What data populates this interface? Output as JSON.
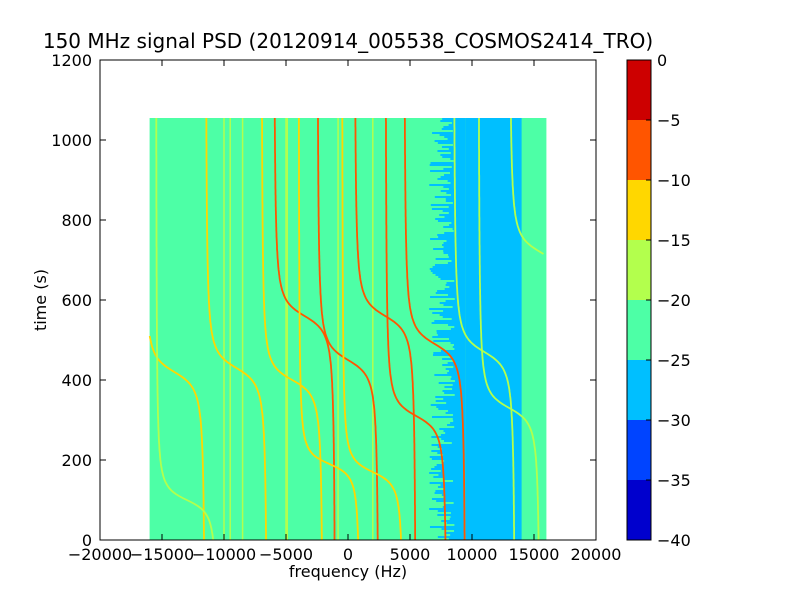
{
  "chart_data": {
    "type": "heatmap",
    "title": "150 MHz signal PSD (20120914_005538_COSMOS2414_TRO)",
    "xlabel": "frequency (Hz)",
    "ylabel": "time (s)",
    "xlim": [
      -20000,
      20000
    ],
    "ylim": [
      0,
      1200
    ],
    "xticks": [
      -20000,
      -15000,
      -10000,
      -5000,
      0,
      5000,
      10000,
      15000,
      20000
    ],
    "yticks": [
      0,
      200,
      400,
      600,
      800,
      1000,
      1200
    ],
    "data_extent": {
      "x": [
        -16000,
        16000
      ],
      "y": [
        0,
        1055
      ]
    },
    "background_level_db": -22,
    "low_noise_band": {
      "x_start": 9500,
      "x_end": 14000,
      "level_db": -27
    },
    "partial_low_noise_band": {
      "x_start": 6000,
      "x_end": 9500,
      "level_db": -27
    },
    "colorbar": {
      "min": -40,
      "max": 0,
      "ticks": [
        0,
        -5,
        -10,
        -15,
        -20,
        -25,
        -30,
        -35,
        -40
      ],
      "levels": [
        {
          "range": [
            -40,
            -35
          ],
          "color": "#0000cd"
        },
        {
          "range": [
            -35,
            -30
          ],
          "color": "#0044ff"
        },
        {
          "range": [
            -30,
            -25
          ],
          "color": "#00bfff"
        },
        {
          "range": [
            -25,
            -20
          ],
          "color": "#4dffa6"
        },
        {
          "range": [
            -20,
            -15
          ],
          "color": "#b3ff4d"
        },
        {
          "range": [
            -15,
            -10
          ],
          "color": "#ffd700"
        },
        {
          "range": [
            -10,
            -5
          ],
          "color": "#ff5500"
        },
        {
          "range": [
            -5,
            0
          ],
          "color": "#cd0000"
        }
      ]
    },
    "vertical_lines": [
      {
        "x": -10000,
        "level_db": -15
      },
      {
        "x": -9500,
        "level_db": -15
      },
      {
        "x": -8500,
        "level_db": -15
      },
      {
        "x": -5000,
        "level_db": -15
      },
      {
        "x": -4900,
        "level_db": -15
      },
      {
        "x": -800,
        "level_db": -18
      },
      {
        "x": 2000,
        "level_db": -18
      }
    ],
    "doppler_tracks": [
      {
        "x_mid": -9000,
        "t_mid": 430,
        "slope": 30,
        "curve": 2500,
        "t_start": 0,
        "t_end": 1055,
        "level_db": -14
      },
      {
        "x_mid": -4500,
        "t_mid": 400,
        "slope": 28,
        "curve": 2500,
        "t_start": 0,
        "t_end": 1055,
        "level_db": -14
      },
      {
        "x_mid": -3500,
        "t_mid": 560,
        "slope": 30,
        "curve": 2500,
        "t_start": 0,
        "t_end": 1055,
        "level_db": -6
      },
      {
        "x_mid": -1500,
        "t_mid": 190,
        "slope": 22,
        "curve": 2500,
        "t_start": 0,
        "t_end": 1055,
        "level_db": -14
      },
      {
        "x_mid": 0,
        "t_mid": 450,
        "slope": 30,
        "curve": 2500,
        "t_start": 0,
        "t_end": 1055,
        "level_db": -6
      },
      {
        "x_mid": 2000,
        "t_mid": 170,
        "slope": 24,
        "curve": 2500,
        "t_start": 0,
        "t_end": 1055,
        "level_db": -14
      },
      {
        "x_mid": 3000,
        "t_mid": 560,
        "slope": 30,
        "curve": 2500,
        "t_start": 0,
        "t_end": 1055,
        "level_db": -6
      },
      {
        "x_mid": 5500,
        "t_mid": 310,
        "slope": 28,
        "curve": 2500,
        "t_start": 0,
        "t_end": 1055,
        "level_db": -8
      },
      {
        "x_mid": 7000,
        "t_mid": 490,
        "slope": 30,
        "curve": 2500,
        "t_start": 0,
        "t_end": 1055,
        "level_db": -8
      },
      {
        "x_mid": 11000,
        "t_mid": 470,
        "slope": 30,
        "curve": 2500,
        "t_start": 0,
        "t_end": 1055,
        "level_db": -16
      },
      {
        "x_mid": 13000,
        "t_mid": 330,
        "slope": 28,
        "curve": 2500,
        "t_start": 0,
        "t_end": 1055,
        "level_db": -16
      },
      {
        "x_mid": -14000,
        "t_mid": 420,
        "slope": 30,
        "curve": 2500,
        "t_start": 0,
        "t_end": 1055,
        "level_db": -14
      },
      {
        "x_mid": -13000,
        "t_mid": 100,
        "slope": 24,
        "curve": 2500,
        "t_start": 0,
        "t_end": 1055,
        "level_db": -16
      },
      {
        "x_mid": 15500,
        "t_mid": 720,
        "slope": 30,
        "curve": 2500,
        "t_start": 0,
        "t_end": 1055,
        "level_db": -16
      }
    ]
  }
}
